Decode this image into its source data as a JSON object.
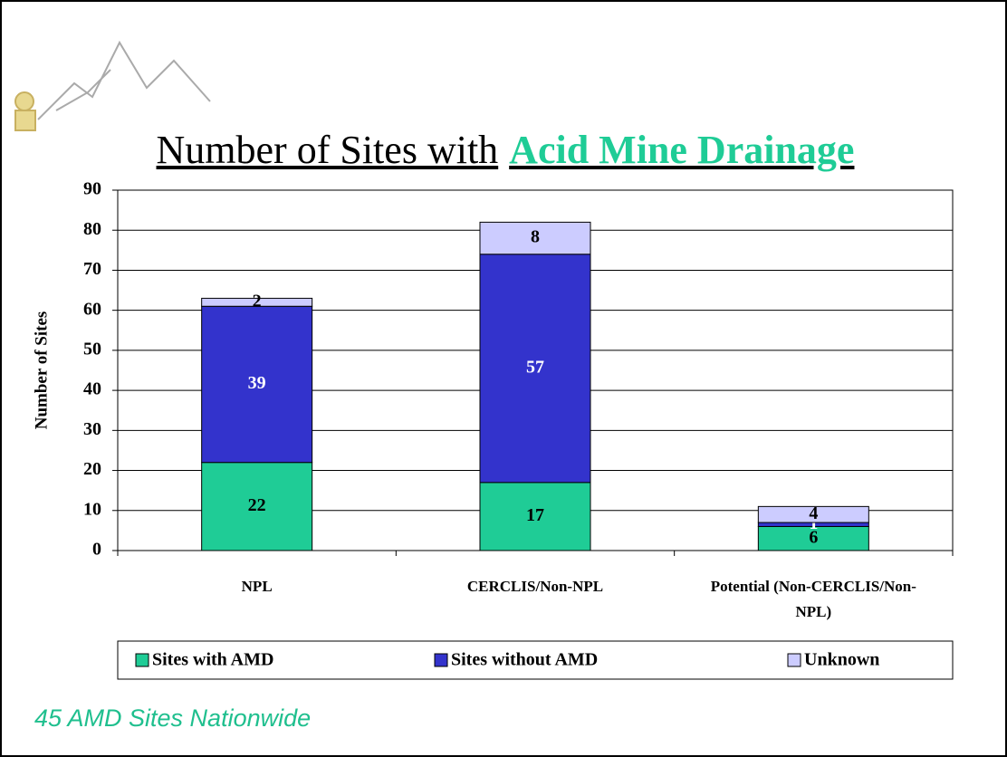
{
  "chart_data": {
    "type": "stacked-bar",
    "title_parts": [
      "Number of Sites with",
      "Acid Mine Drainage"
    ],
    "y_label": "Number of Sites",
    "categories": [
      "NPL",
      "CERCLIS/Non-NPL",
      "Potential (Non-CERCLIS/Non-NPL)"
    ],
    "series": [
      {
        "name": "Sites with AMD",
        "color": "#1fcc96",
        "values": [
          22,
          17,
          6
        ]
      },
      {
        "name": "Sites without AMD",
        "color": "#3333cc",
        "values": [
          39,
          57,
          1
        ]
      },
      {
        "name": "Unknown",
        "color": "#ccccff",
        "values": [
          2,
          8,
          4
        ]
      }
    ],
    "ylim": [
      0,
      90
    ],
    "yticks": [
      0,
      10,
      20,
      30,
      40,
      50,
      60,
      70,
      80,
      90
    ],
    "grid": true,
    "legend": "bottom",
    "annotation": "45 AMD Sites Nationwide"
  }
}
